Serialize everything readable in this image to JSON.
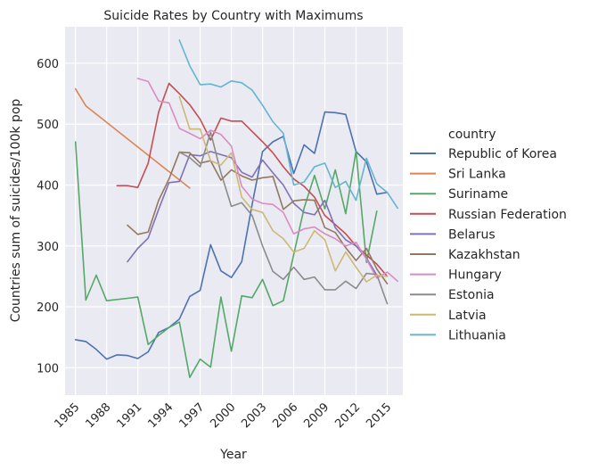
{
  "chart_data": {
    "type": "line",
    "title": "Suicide Rates by Country with Maximums",
    "xlabel": "Year",
    "ylabel": "Countries sum of suicides/100k pop",
    "xlim": [
      1984,
      2016.5
    ],
    "ylim": [
      55,
      660
    ],
    "xticks": [
      1985,
      1988,
      1991,
      1994,
      1997,
      2000,
      2003,
      2006,
      2009,
      2012,
      2015
    ],
    "yticks": [
      100,
      200,
      300,
      400,
      500,
      600
    ],
    "grid": true,
    "legend": {
      "title": "country",
      "placement": "right"
    },
    "series": [
      {
        "name": "Republic of Korea",
        "color": "#4c72b0",
        "x": [
          1985,
          1986,
          1987,
          1988,
          1989,
          1990,
          1991,
          1992,
          1993,
          1994,
          1995,
          1996,
          1997,
          1998,
          1999,
          2000,
          2001,
          2002,
          2003,
          2004,
          2005,
          2006,
          2007,
          2008,
          2009,
          2010,
          2011,
          2012,
          2013,
          2014,
          2015
        ],
        "y": [
          146,
          143,
          130,
          114,
          121,
          120,
          115,
          126,
          158,
          166,
          180,
          217,
          227,
          302,
          259,
          248,
          274,
          368,
          455,
          471,
          480,
          419,
          466,
          452,
          520,
          519,
          516,
          455,
          438,
          385,
          388
        ]
      },
      {
        "name": "Sri Lanka",
        "color": "#dd8452",
        "x": [
          1985,
          1986,
          1996
        ],
        "y": [
          558,
          530,
          395
        ]
      },
      {
        "name": "Suriname",
        "color": "#55a868",
        "x": [
          1985,
          1986,
          1987,
          1988,
          1990,
          1991,
          1992,
          1993,
          1994,
          1995,
          1996,
          1997,
          1998,
          1999,
          2000,
          2001,
          2002,
          2003,
          2004,
          2005,
          2006,
          2007,
          2008,
          2009,
          2010,
          2011,
          2012,
          2013,
          2014
        ],
        "y": [
          471,
          211,
          252,
          210,
          214,
          216,
          138,
          153,
          166,
          175,
          84,
          114,
          101,
          216,
          127,
          218,
          215,
          245,
          202,
          210,
          286,
          362,
          416,
          361,
          425,
          353,
          456,
          273,
          357
        ]
      },
      {
        "name": "Russian Federation",
        "color": "#c44e52",
        "x": [
          1989,
          1990,
          1991,
          1992,
          1993,
          1994,
          1995,
          1996,
          1997,
          1998,
          1999,
          2000,
          2001,
          2002,
          2003,
          2004,
          2005,
          2006,
          2007,
          2008,
          2009,
          2010,
          2011,
          2012,
          2013,
          2014,
          2015
        ],
        "y": [
          399,
          399,
          396,
          436,
          520,
          567,
          550,
          532,
          508,
          474,
          510,
          505,
          505,
          488,
          471,
          453,
          430,
          410,
          398,
          380,
          350,
          335,
          320,
          300,
          285,
          270,
          250
        ]
      },
      {
        "name": "Belarus",
        "color": "#8172b3",
        "x": [
          1990,
          1991,
          1992,
          1993,
          1994,
          1995,
          1996,
          1997,
          1998,
          1999,
          2000,
          2001,
          2002,
          2003,
          2004,
          2005,
          2006,
          2007,
          2008,
          2009,
          2010,
          2011,
          2012,
          2013,
          2014
        ],
        "y": [
          274,
          296,
          313,
          360,
          404,
          406,
          450,
          448,
          455,
          450,
          445,
          421,
          413,
          441,
          420,
          400,
          370,
          355,
          351,
          375,
          330,
          310,
          300,
          280,
          252
        ]
      },
      {
        "name": "Kazakhstan",
        "color": "#937860",
        "x": [
          1990,
          1991,
          1992,
          1993,
          1994,
          1995,
          1996,
          1997,
          1998,
          1999,
          2000,
          2001,
          2002,
          2003,
          2004,
          2005,
          2006,
          2007,
          2008,
          2009,
          2010,
          2011,
          2012,
          2013,
          2014,
          2015
        ],
        "y": [
          334,
          319,
          323,
          375,
          410,
          454,
          453,
          436,
          440,
          408,
          425,
          415,
          408,
          412,
          414,
          360,
          374,
          376,
          375,
          330,
          322,
          297,
          276,
          296,
          262,
          238
        ]
      },
      {
        "name": "Hungary",
        "color": "#da8bc3",
        "x": [
          1991,
          1992,
          1993,
          1994,
          1995,
          1996,
          1997,
          1998,
          1999,
          2000,
          2001,
          2002,
          2003,
          2004,
          2005,
          2006,
          2007,
          2008,
          2009,
          2010,
          2011,
          2012,
          2013,
          2014,
          2015,
          2016
        ],
        "y": [
          575,
          570,
          538,
          535,
          493,
          485,
          476,
          490,
          483,
          464,
          398,
          377,
          370,
          368,
          355,
          320,
          328,
          331,
          320,
          312,
          300,
          306,
          278,
          247,
          257,
          242
        ]
      },
      {
        "name": "Estonia",
        "color": "#8c8c8c",
        "x": [
          1995,
          1996,
          1997,
          1998,
          1999,
          2000,
          2001,
          2002,
          2003,
          2004,
          2005,
          2006,
          2007,
          2008,
          2009,
          2010,
          2011,
          2012,
          2013,
          2014,
          2015
        ],
        "y": [
          454,
          445,
          430,
          487,
          420,
          365,
          371,
          350,
          300,
          258,
          245,
          265,
          245,
          249,
          228,
          228,
          242,
          230,
          255,
          253,
          205
        ]
      },
      {
        "name": "Latvia",
        "color": "#ccb974",
        "x": [
          1995,
          1996,
          1997,
          1998,
          1999,
          2000,
          2001,
          2002,
          2003,
          2004,
          2005,
          2006,
          2007,
          2008,
          2009,
          2010,
          2011,
          2012,
          2013,
          2014,
          2015
        ],
        "y": [
          545,
          492,
          492,
          440,
          433,
          453,
          380,
          360,
          355,
          325,
          312,
          290,
          296,
          325,
          310,
          259,
          290,
          265,
          241,
          252,
          250
        ]
      },
      {
        "name": "Lithuania",
        "color": "#64b5cd",
        "x": [
          1995,
          1996,
          1997,
          1998,
          1999,
          2000,
          2001,
          2002,
          2003,
          2004,
          2005,
          2006,
          2007,
          2008,
          2009,
          2010,
          2011,
          2012,
          2013,
          2014,
          2015,
          2016
        ],
        "y": [
          638,
          596,
          565,
          566,
          561,
          571,
          568,
          556,
          531,
          504,
          485,
          400,
          405,
          430,
          436,
          396,
          406,
          375,
          444,
          402,
          388,
          362
        ]
      }
    ]
  }
}
